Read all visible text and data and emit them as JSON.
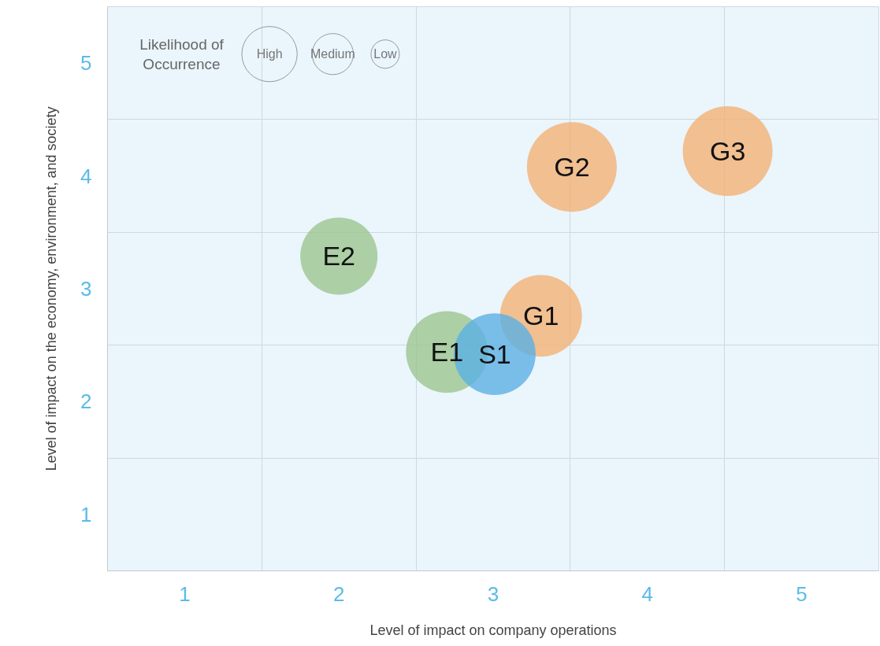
{
  "chart_data": {
    "type": "bubble",
    "xlabel": "Level of impact on company operations",
    "ylabel": "Level of impact on the economy, environment, and society",
    "legend_title": "Likelihood of Occurrence",
    "x": [
      4.52,
      3.51,
      2.0,
      3.31,
      2.7,
      3.01
    ],
    "values": [
      4.22,
      4.08,
      3.29,
      2.76,
      2.44,
      2.42
    ],
    "sizes": [
      1,
      1,
      0.74,
      0.83,
      0.83,
      0.83
    ],
    "colors": [
      "#f2b274",
      "#f2b274",
      "#9cc58f",
      "#f2b274",
      "#9cc58f",
      "#5bb0e3"
    ],
    "size_legend": [
      {
        "value": 0.38,
        "label": "High"
      },
      {
        "value": 0.21,
        "label": "Medium"
      },
      {
        "value": 0.1,
        "label": "Low"
      }
    ],
    "annotations": [
      {
        "text": "G3",
        "x": 4.52,
        "y": 4.22
      },
      {
        "text": "G2",
        "x": 3.51,
        "y": 4.08
      },
      {
        "text": "E2",
        "x": 2.0,
        "y": 3.29
      },
      {
        "text": "G1",
        "x": 3.31,
        "y": 2.76
      },
      {
        "text": "E1",
        "x": 2.7,
        "y": 2.44
      },
      {
        "text": "S1",
        "x": 3.01,
        "y": 2.42
      }
    ],
    "xlim": [
      0.5,
      5.5
    ],
    "ylim": [
      0.5,
      5.5
    ],
    "xticks": [
      1,
      2,
      3,
      4,
      5,
      {
        "value": 1.5,
        "label": null
      },
      {
        "value": 2.5,
        "label": null
      },
      {
        "value": 3.5,
        "label": null
      },
      {
        "value": 4.5,
        "label": null
      }
    ],
    "yticks": [
      1,
      2,
      3,
      4,
      5,
      {
        "value": 1.5,
        "label": null
      },
      {
        "value": 2.5,
        "label": null
      },
      {
        "value": 3.5,
        "label": null
      },
      {
        "value": 4.5,
        "label": null
      }
    ],
    "grid": true
  }
}
